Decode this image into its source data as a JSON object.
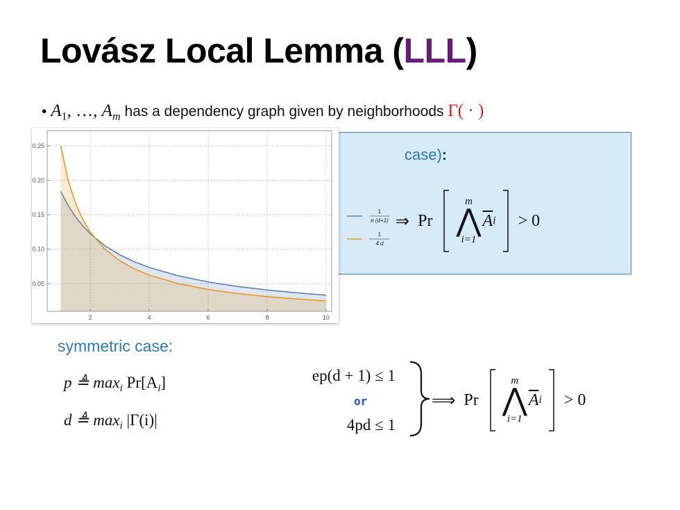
{
  "title": {
    "text": "Lovász Local Lemma (",
    "highlight": "LLL",
    "close": ")"
  },
  "bullet": {
    "marker": "•",
    "parts": [
      "A",
      "1",
      ", …, ",
      "A",
      "m",
      " has a dependency graph given by neighborhoods ",
      "Γ( · )"
    ]
  },
  "box": {
    "heading": "case)",
    "colon": ":",
    "implies": "⇒",
    "pr": "Pr",
    "upper": "m",
    "wedge": "⋀",
    "event": "A",
    "event_sub": "i",
    "lower": "i=1",
    "rhs": "> 0"
  },
  "symmetric": {
    "heading": "symmetric case:",
    "defs": [
      [
        "p ≜ max",
        "i",
        " Pr[A",
        "i",
        "]"
      ],
      [
        "d ≜ max",
        "i",
        " |Γ(i)|"
      ]
    ],
    "conditions": [
      "ep(d + 1) ≤ 1",
      "4pd ≤ 1"
    ],
    "or": "or",
    "implies": "⟹",
    "pr": "Pr",
    "upper": "m",
    "wedge": "⋀",
    "event": "A",
    "event_sub": "i",
    "lower": "i=1",
    "rhs": "> 0"
  },
  "chart_data": {
    "type": "line",
    "x": [
      1,
      1.25,
      1.5,
      1.75,
      2,
      2.5,
      3,
      3.5,
      4,
      5,
      6,
      7,
      8,
      9,
      10
    ],
    "series": [
      {
        "name": "1/(e (d+1))",
        "numerator": "1",
        "denominator": "e (d+1)",
        "color": "#5e81b5",
        "values": [
          0.1839,
          0.1635,
          0.1472,
          0.1338,
          0.1226,
          0.1051,
          0.092,
          0.0817,
          0.0736,
          0.0613,
          0.0526,
          0.046,
          0.0409,
          0.0368,
          0.0334
        ]
      },
      {
        "name": "1/(4 d)",
        "numerator": "1",
        "denominator": "4 d",
        "color": "#e19c24",
        "values": [
          0.25,
          0.2,
          0.1667,
          0.1429,
          0.125,
          0.1,
          0.0833,
          0.0714,
          0.0625,
          0.05,
          0.0417,
          0.0357,
          0.0313,
          0.0278,
          0.025
        ]
      }
    ],
    "xlim": [
      0.54,
      10.19
    ],
    "ylim": [
      0.01,
      0.272
    ],
    "xticks": [
      2,
      4,
      6,
      8,
      10
    ],
    "yticks": [
      0.05,
      {
        "value": 0.1,
        "label": "0.10"
      },
      0.15,
      {
        "value": 0.2,
        "label": "0.20"
      },
      0.25
    ],
    "grid": true,
    "filling": true,
    "legend": "right"
  }
}
